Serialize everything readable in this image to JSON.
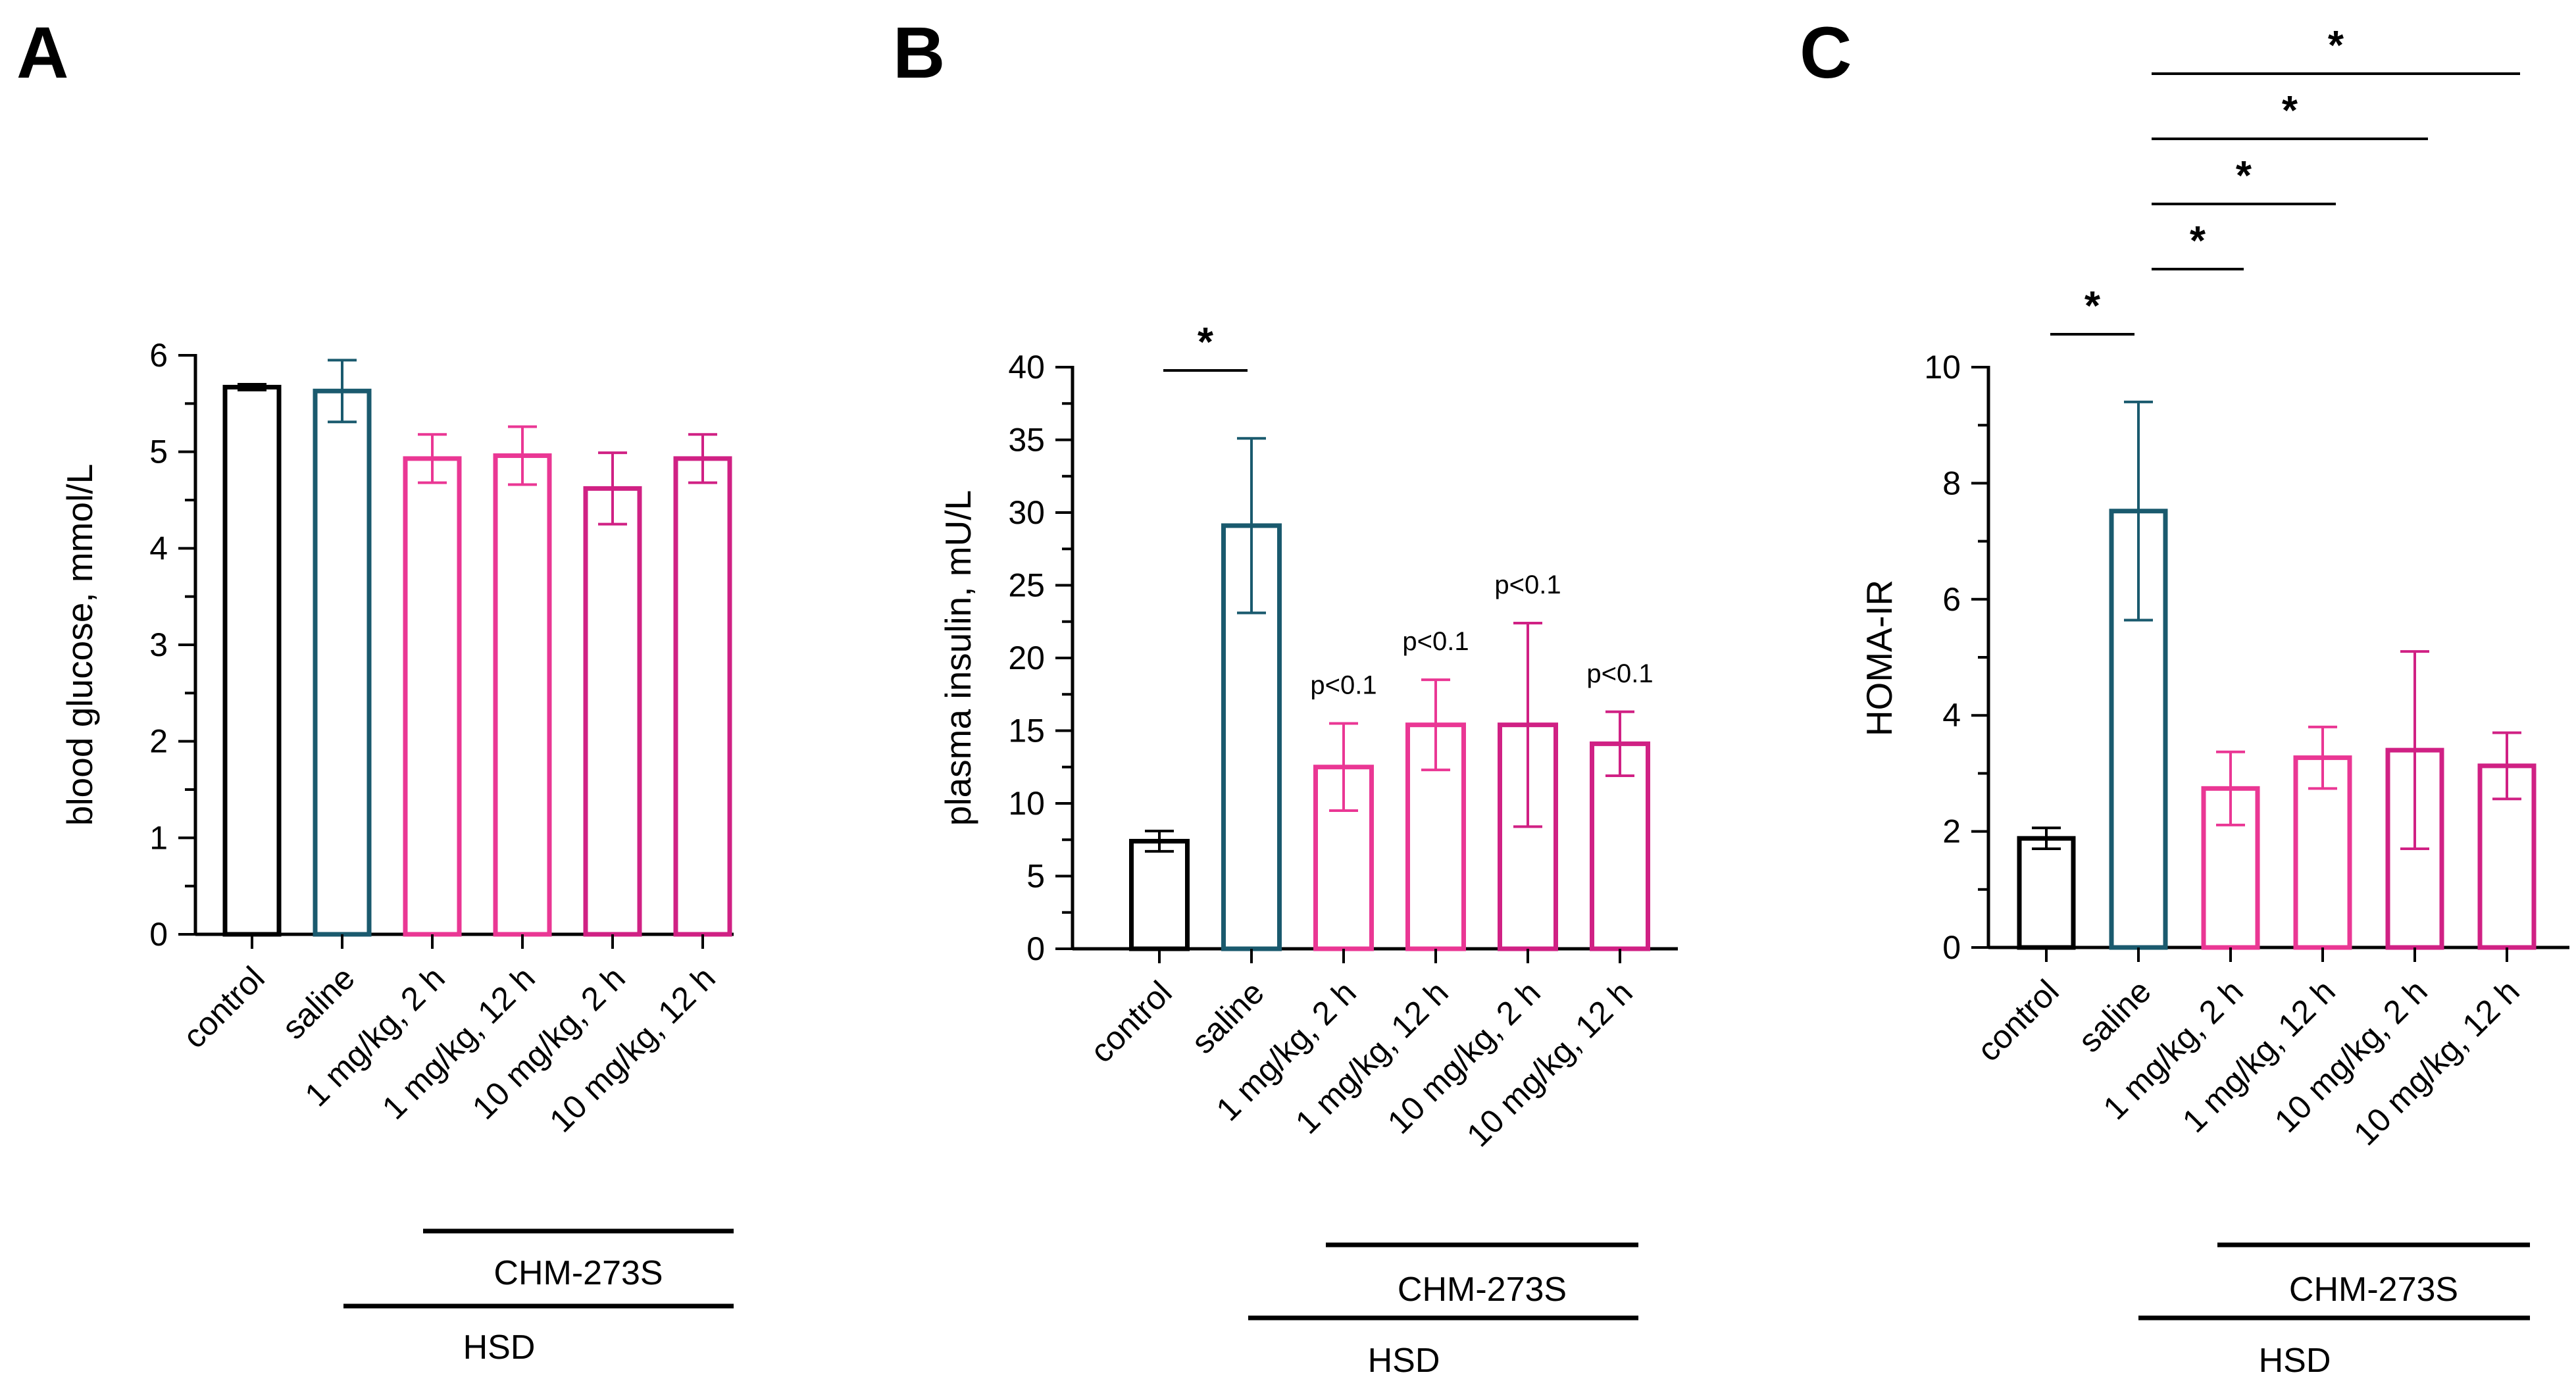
{
  "colors": {
    "control": "#000000",
    "saline": "#1a5a6e",
    "treat_a": "#ea3794",
    "treat_b": "#d02184"
  },
  "chart_data": [
    {
      "type": "bar",
      "panel": "A",
      "ylabel": "blood glucose, mmol/L",
      "ylim": [
        0,
        6
      ],
      "yticks": [
        "0",
        "1",
        "2",
        "3",
        "4",
        "5",
        "6"
      ],
      "categories": [
        "control",
        "saline",
        "1 mg/kg, 2 h",
        "1 mg/kg, 12 h",
        "10 mg/kg, 2 h",
        "10 mg/kg, 12 h"
      ],
      "values": [
        5.67,
        5.63,
        4.93,
        4.96,
        4.62,
        4.93
      ],
      "errors": [
        0.03,
        0.32,
        0.25,
        0.3,
        0.37,
        0.25
      ],
      "group_labels": {
        "inner": "CHM-273S",
        "outer": "HSD"
      },
      "annotations": []
    },
    {
      "type": "bar",
      "panel": "B",
      "ylabel": "plasma insulin, mU/L",
      "ylim": [
        0,
        40
      ],
      "yticks": [
        "0",
        "5",
        "10",
        "15",
        "20",
        "25",
        "30",
        "35",
        "40"
      ],
      "categories": [
        "control",
        "saline",
        "1 mg/kg, 2 h",
        "1 mg/kg, 12 h",
        "10 mg/kg, 2 h",
        "10 mg/kg, 12 h"
      ],
      "values": [
        7.4,
        29.1,
        12.5,
        15.4,
        15.4,
        14.1
      ],
      "errors": [
        0.7,
        6.0,
        3.0,
        3.1,
        7.0,
        2.2
      ],
      "group_labels": {
        "inner": "CHM-273S",
        "outer": "HSD"
      },
      "annotations": [
        {
          "text": "p<0.1",
          "category": 2
        },
        {
          "text": "p<0.1",
          "category": 3
        },
        {
          "text": "p<0.1",
          "category": 4
        },
        {
          "text": "p<0.1",
          "category": 5
        }
      ],
      "significance": [
        {
          "from": 0,
          "to": 1,
          "text": "*"
        }
      ]
    },
    {
      "type": "bar",
      "panel": "C",
      "ylabel": "HOMA-IR",
      "ylim": [
        0,
        10
      ],
      "yticks": [
        "0",
        "2",
        "4",
        "6",
        "8",
        "10"
      ],
      "categories": [
        "control",
        "saline",
        "1 mg/kg, 2 h",
        "1 mg/kg, 12 h",
        "10 mg/kg, 2 h",
        "10 mg/kg, 12 h"
      ],
      "values": [
        1.88,
        7.52,
        2.74,
        3.27,
        3.4,
        3.13
      ],
      "errors": [
        0.18,
        1.88,
        0.63,
        0.53,
        1.7,
        0.57
      ],
      "group_labels": {
        "inner": "CHM-273S",
        "outer": "HSD"
      },
      "annotations": [],
      "significance": [
        {
          "from": 0,
          "to": 1,
          "text": "*"
        },
        {
          "from": 1,
          "to": 2,
          "text": "*"
        },
        {
          "from": 1,
          "to": 3,
          "text": "*"
        },
        {
          "from": 1,
          "to": 4,
          "text": "*"
        },
        {
          "from": 1,
          "to": 5,
          "text": "*"
        }
      ]
    }
  ]
}
